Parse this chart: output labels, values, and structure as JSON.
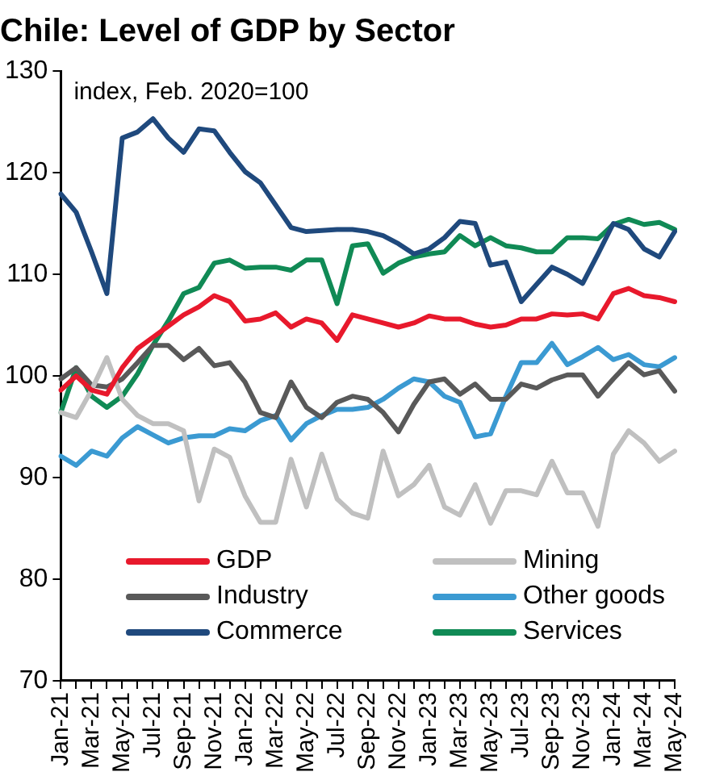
{
  "chart_data": {
    "type": "line",
    "title": "Chile: Level of GDP by Sector",
    "annotations": [
      "index, Feb. 2020=100"
    ],
    "categories": [
      "Jan-21",
      null,
      "Mar-21",
      null,
      "May-21",
      null,
      "Jul-21",
      null,
      "Sep-21",
      null,
      "Nov-21",
      null,
      "Jan-22",
      null,
      "Mar-22",
      null,
      "May-22",
      null,
      "Jul-22",
      null,
      "Sep-22",
      null,
      "Nov-22",
      null,
      "Jan-23",
      null,
      "Mar-23",
      null,
      "May-23",
      null,
      "Jul-23",
      null,
      "Sep-23",
      null,
      "Nov-23",
      null,
      "Jan-24",
      null,
      "Mar-24",
      null,
      "May-24"
    ],
    "ylim": [
      70,
      130
    ],
    "yticks": [
      70,
      80,
      90,
      100,
      110,
      120,
      130
    ],
    "grid": false,
    "legend": "bottom",
    "marker": "none",
    "line_style": "solid",
    "series": [
      {
        "name": "GDP",
        "color": "#e8192c",
        "values": [
          98.6,
          100,
          98.6,
          98.2,
          100.8,
          102.7,
          103.8,
          104.9,
          106,
          106.8,
          107.9,
          107.3,
          105.4,
          105.6,
          106.2,
          104.8,
          105.6,
          105.2,
          103.5,
          106,
          105.6,
          105.2,
          104.8,
          105.2,
          105.9,
          105.6,
          105.6,
          105.1,
          104.8,
          105,
          105.6,
          105.6,
          106.1,
          106,
          106.1,
          105.6,
          108.1,
          108.6,
          107.9,
          107.7,
          107.3
        ]
      },
      {
        "name": "Mining",
        "color": "#c0c0c0",
        "values": [
          96.4,
          95.9,
          98.6,
          101.8,
          97.7,
          96.1,
          95.3,
          95.3,
          94.6,
          87.7,
          92.8,
          92,
          88.2,
          85.6,
          85.6,
          91.8,
          87.1,
          92.3,
          87.9,
          86.5,
          86,
          92.6,
          88.2,
          89.3,
          91.2,
          87.1,
          86.3,
          89.3,
          85.5,
          88.7,
          88.7,
          88.3,
          91.6,
          88.5,
          88.5,
          85.2,
          92.3,
          94.6,
          93.4,
          91.6,
          92.6
        ]
      },
      {
        "name": "Industry",
        "color": "#595959",
        "values": [
          99.7,
          100.8,
          99.1,
          98.9,
          99.7,
          101.3,
          103,
          103,
          101.6,
          102.7,
          101,
          101.3,
          99.4,
          96.4,
          95.9,
          99.4,
          96.9,
          95.9,
          97.4,
          98,
          97.7,
          96.4,
          94.5,
          97.2,
          99.4,
          99.7,
          98.2,
          99.2,
          97.7,
          97.7,
          99.2,
          98.8,
          99.6,
          100.1,
          100.1,
          98,
          99.7,
          101.3,
          100.1,
          100.5,
          98.5
        ]
      },
      {
        "name": "Other goods",
        "color": "#3b9ad2",
        "values": [
          92.1,
          91.2,
          92.6,
          92.1,
          93.9,
          95,
          94.2,
          93.4,
          93.9,
          94.1,
          94.1,
          94.8,
          94.6,
          95.6,
          96.1,
          93.7,
          95.3,
          96.1,
          96.7,
          96.7,
          96.9,
          97.7,
          98.8,
          99.7,
          99.4,
          98,
          97.4,
          94,
          94.3,
          98,
          101.3,
          101.3,
          103.2,
          101.1,
          101.9,
          102.8,
          101.6,
          102.1,
          101.1,
          100.9,
          101.8
        ]
      },
      {
        "name": "Commerce",
        "color": "#1f497d",
        "values": [
          117.9,
          116.1,
          112.2,
          108.1,
          123.4,
          124,
          125.3,
          123.4,
          122,
          124.3,
          124.1,
          122,
          120.1,
          119,
          116.8,
          114.6,
          114.2,
          114.3,
          114.4,
          114.4,
          114.2,
          113.8,
          113,
          112,
          112.5,
          113.6,
          115.2,
          115,
          110.9,
          111.2,
          107.3,
          109,
          110.7,
          110,
          109.1,
          112,
          115,
          114.4,
          112.5,
          111.7,
          114.2
        ]
      },
      {
        "name": "Services",
        "color": "#108a55",
        "values": [
          96.4,
          100.8,
          98,
          96.9,
          98,
          100.2,
          103,
          105.4,
          108.1,
          108.7,
          111.1,
          111.4,
          110.6,
          110.7,
          110.7,
          110.4,
          111.4,
          111.4,
          107.1,
          112.8,
          113,
          110.1,
          111.1,
          111.7,
          112,
          112.2,
          113.8,
          112.8,
          113.6,
          112.8,
          112.6,
          112.2,
          112.2,
          113.6,
          113.6,
          113.5,
          114.9,
          115.4,
          114.9,
          115.1,
          114.4
        ]
      }
    ]
  }
}
